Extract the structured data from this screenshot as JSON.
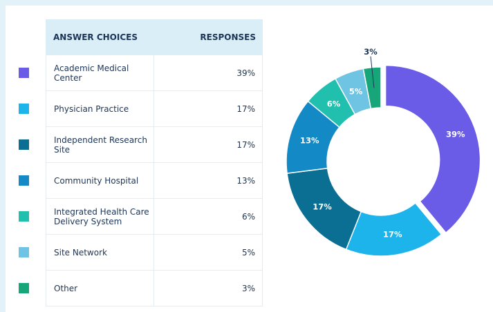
{
  "chart_data": {
    "type": "donut",
    "column_headers": [
      "ANSWER CHOICES",
      "RESPONSES"
    ],
    "categories": [
      "Academic Medical Center",
      "Physician Practice",
      "Independent Research Site",
      "Community Hospital",
      "Integrated Health Care Delivery System",
      "Site Network",
      "Other"
    ],
    "values": [
      39,
      17,
      17,
      13,
      6,
      5,
      3
    ],
    "value_labels": [
      "39%",
      "17%",
      "17%",
      "13%",
      "6%",
      "5%",
      "3%"
    ],
    "colors": [
      "#6a5ce6",
      "#1db4ec",
      "#0b6e93",
      "#1389c5",
      "#20bfae",
      "#6fc4e4",
      "#17a67a"
    ]
  }
}
